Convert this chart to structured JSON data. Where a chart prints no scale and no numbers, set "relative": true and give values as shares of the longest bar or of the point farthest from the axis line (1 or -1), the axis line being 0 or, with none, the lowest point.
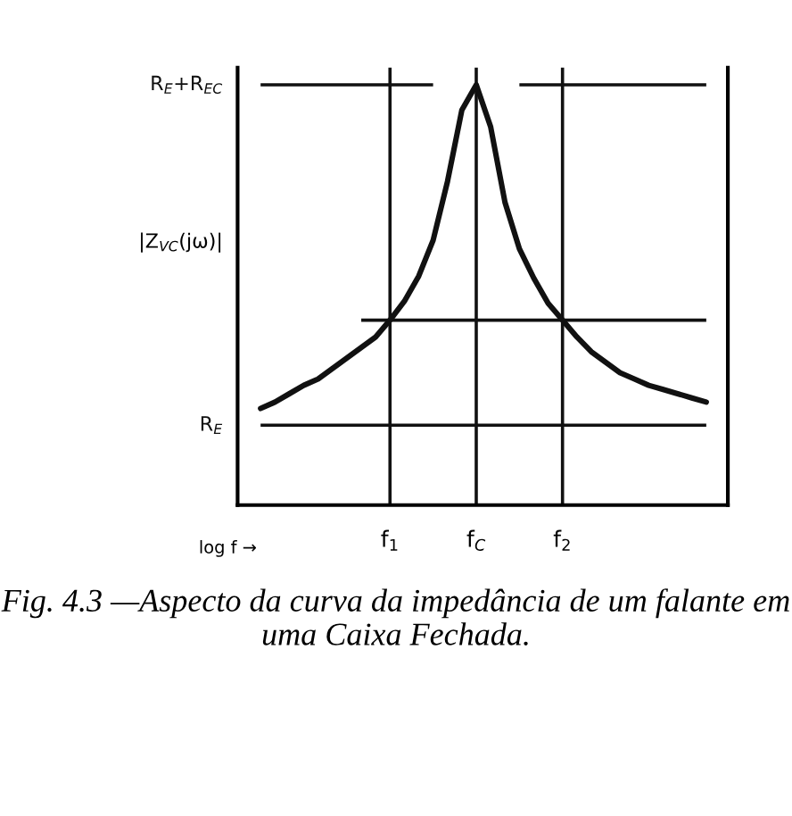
{
  "chart_data": {
    "type": "line",
    "relative": true,
    "xlabel": "log f →",
    "ylabel": "|Z$_{VC}$(jω)|",
    "categories": [
      null,
      null,
      null,
      null,
      null,
      null,
      null,
      null,
      null,
      "f$_{1}$",
      null,
      null,
      null,
      null,
      null,
      "f$_{C}$",
      null,
      null,
      null,
      null,
      null,
      "f$_{2}$",
      null,
      null,
      null,
      null,
      null,
      null,
      null,
      null,
      null,
      null
    ],
    "series": [
      {
        "color": "#111111",
        "values": [
          0.23,
          0.245,
          0.265,
          0.285,
          0.3,
          0.325,
          0.35,
          0.375,
          0.4,
          0.44,
          0.485,
          0.545,
          0.63,
          0.77,
          0.94,
          1.0,
          0.9,
          0.72,
          0.61,
          0.54,
          0.48,
          0.44,
          0.4,
          0.365,
          0.34,
          0.315,
          0.3,
          0.285,
          0.275,
          0.265,
          0.255,
          0.245
        ]
      },
      {
        "name": "R$_{E}$+R$_{EC}$",
        "color": "#111111",
        "values": [
          1.0,
          1.0,
          1.0,
          1.0,
          1.0,
          1.0,
          1.0,
          1.0,
          1.0,
          1.0,
          1.0,
          1.0,
          1.0,
          null,
          null,
          null,
          null,
          null,
          1.0,
          1.0,
          1.0,
          1.0,
          1.0,
          1.0,
          1.0,
          1.0,
          1.0,
          1.0,
          1.0,
          1.0,
          1.0,
          1.0
        ]
      },
      {
        "color": "#111111",
        "values": [
          null,
          null,
          null,
          null,
          null,
          null,
          null,
          0.44,
          0.44,
          0.44,
          0.44,
          0.44,
          0.44,
          0.44,
          0.44,
          0.44,
          0.44,
          0.44,
          0.44,
          0.44,
          0.44,
          0.44,
          0.44,
          0.44,
          0.44,
          0.44,
          0.44,
          0.44,
          0.44,
          0.44,
          0.44,
          0.44
        ]
      },
      {
        "name": "R$_{E}$",
        "color": "#111111",
        "values": [
          0.19,
          0.19,
          0.19,
          0.19,
          0.19,
          0.19,
          0.19,
          0.19,
          0.19,
          0.19,
          0.19,
          0.19,
          0.19,
          0.19,
          0.19,
          0.19,
          0.19,
          0.19,
          0.19,
          0.19,
          0.19,
          0.19,
          0.19,
          0.19,
          0.19,
          0.19,
          0.19,
          0.19,
          0.19,
          0.19,
          0.19,
          0.19
        ]
      }
    ],
    "annotations": [
      "Fig. 4.3 —Aspecto da curva da impedância de um falante em uma Caixa Fechada."
    ],
    "grid": "x",
    "legend": false,
    "marker": "none",
    "line_style": "solid"
  }
}
